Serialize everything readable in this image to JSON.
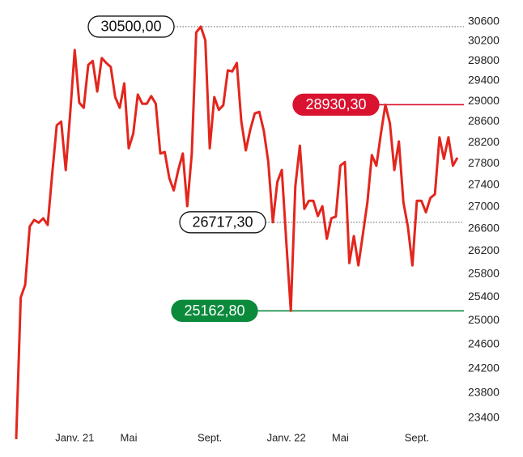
{
  "chart_data": {
    "type": "line",
    "log_scale": true,
    "grid": false,
    "categories": [
      null,
      null,
      null,
      null,
      null,
      null,
      null,
      null,
      null,
      null,
      null,
      null,
      null,
      "Janv. 21",
      null,
      null,
      null,
      null,
      null,
      null,
      null,
      null,
      null,
      null,
      null,
      "Mai",
      null,
      null,
      null,
      null,
      null,
      null,
      null,
      null,
      null,
      null,
      null,
      null,
      null,
      null,
      null,
      null,
      null,
      "Sept.",
      null,
      null,
      null,
      null,
      null,
      null,
      null,
      null,
      null,
      null,
      null,
      null,
      null,
      null,
      null,
      null,
      "Janv. 22",
      null,
      null,
      null,
      null,
      null,
      null,
      null,
      null,
      null,
      null,
      null,
      "Mai",
      null,
      null,
      null,
      null,
      null,
      null,
      null,
      null,
      null,
      null,
      null,
      null,
      null,
      null,
      null,
      null,
      "Sept.",
      null,
      null,
      null,
      null,
      null,
      null,
      null,
      null,
      null
    ],
    "series": [
      {
        "color": "#e3261d",
        "values": [
          23070,
          25390,
          25610,
          26640,
          26760,
          26710,
          26790,
          26670,
          27610,
          28530,
          28600,
          27680,
          28760,
          30020,
          28970,
          28870,
          29720,
          29800,
          29190,
          29860,
          29760,
          29680,
          29080,
          28870,
          29350,
          28090,
          28370,
          29130,
          28950,
          28950,
          29100,
          28950,
          27990,
          28020,
          27530,
          27300,
          27680,
          27990,
          27010,
          27990,
          30380,
          30500,
          30220,
          28090,
          29080,
          28830,
          28920,
          29610,
          29590,
          29760,
          28600,
          28050,
          28450,
          28760,
          28790,
          28420,
          27830,
          26717.3,
          27460,
          27680,
          26350,
          25162.8,
          27380,
          28140,
          26960,
          27110,
          27110,
          26830,
          27010,
          26420,
          26790,
          26820,
          27760,
          27830,
          25990,
          26470,
          25950,
          26500,
          27080,
          27960,
          27760,
          28370,
          28930.3,
          28570,
          27680,
          28220,
          27080,
          26640,
          25950,
          27110,
          27110,
          26900,
          27160,
          27230,
          28300,
          27890,
          28300,
          27760,
          27910
        ]
      }
    ],
    "ylim": [
      23000,
      30700
    ],
    "yticks": [
      30600,
      30200,
      29800,
      29400,
      29000,
      28600,
      28200,
      27800,
      27400,
      27000,
      26600,
      26200,
      25800,
      25400,
      25000,
      24600,
      24200,
      23800,
      23400
    ],
    "annotations": [
      {
        "value": 30500,
        "label": "30500,00",
        "color": "#ffffff",
        "text_color": "#111111",
        "line_color": "#888888",
        "line_style": "dotted"
      },
      {
        "value": 28930.3,
        "label": "28930,30",
        "color": "#d9122f",
        "text_color": "#ffffff",
        "line_color": "#d9122f",
        "line_style": "solid"
      },
      {
        "value": 26717.3,
        "label": "26717,30",
        "color": "#ffffff",
        "text_color": "#111111",
        "line_color": "#888888",
        "line_style": "dotted"
      },
      {
        "value": 25162.8,
        "label": "25162,80",
        "color": "#0b8a3c",
        "text_color": "#ffffff",
        "line_color": "#0b8a3c",
        "line_style": "solid"
      }
    ]
  }
}
